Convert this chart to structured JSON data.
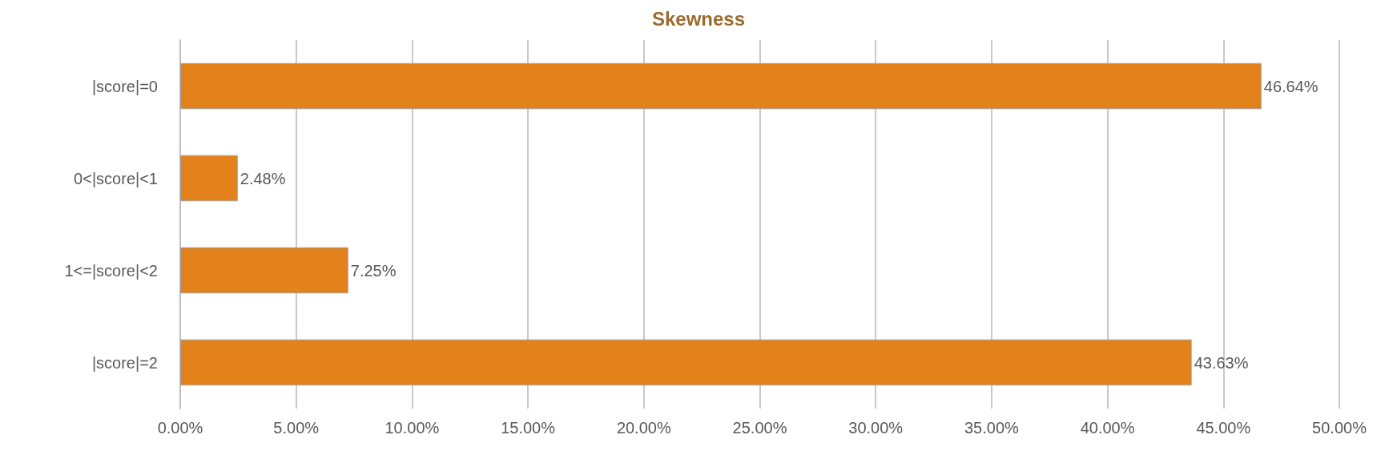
{
  "chart_data": {
    "type": "bar",
    "title": "Skewness",
    "orientation": "horizontal",
    "categories": [
      "|score|=0",
      "0<|score|<1",
      "1<=|score|<2",
      "|score|=2"
    ],
    "values": [
      46.64,
      2.48,
      7.25,
      43.63
    ],
    "value_labels": [
      "46.64%",
      "2.48%",
      "7.25%",
      "43.63%"
    ],
    "color": "#e3821a",
    "xlim": [
      0,
      50
    ],
    "xticks": [
      {
        "value": 0,
        "label": "0.00%"
      },
      {
        "value": 5,
        "label": "5.00%"
      },
      {
        "value": 10,
        "label": "10.00%"
      },
      {
        "value": 15,
        "label": "15.00%"
      },
      {
        "value": 20,
        "label": "20.00%"
      },
      {
        "value": 25,
        "label": "25.00%"
      },
      {
        "value": 30,
        "label": "30.00%"
      },
      {
        "value": 35,
        "label": "35.00%"
      },
      {
        "value": 40,
        "label": "40.00%"
      },
      {
        "value": 45,
        "label": "45.00%"
      },
      {
        "value": 50,
        "label": "50.00%"
      }
    ],
    "grid": "x"
  }
}
